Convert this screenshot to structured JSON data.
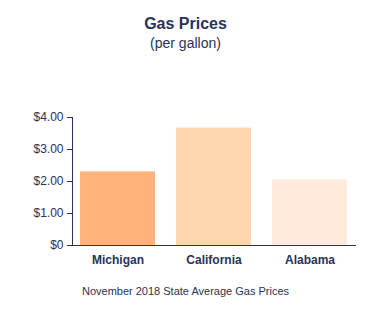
{
  "chart_data": {
    "type": "bar",
    "title": "Gas Prices",
    "subtitle": "(per gallon)",
    "caption": "November 2018 State Average Gas Prices",
    "categories": [
      "Michigan",
      "California",
      "Alabama"
    ],
    "values": [
      2.3,
      3.67,
      2.05
    ],
    "colors": [
      "#ffb27a",
      "#ffd5b0",
      "#ffeadb"
    ],
    "ylim": [
      0,
      4
    ],
    "yticks": [
      {
        "value": 0,
        "label": "$0"
      },
      {
        "value": 1,
        "label": "$1.00"
      },
      {
        "value": 2,
        "label": "$2.00"
      },
      {
        "value": 3,
        "label": "$3.00"
      },
      {
        "value": 4,
        "label": "$4.00"
      }
    ],
    "grid": false
  }
}
